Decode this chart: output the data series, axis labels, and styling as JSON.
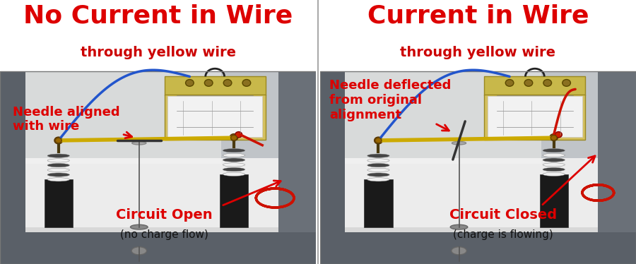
{
  "left_title": "No Current in Wire",
  "right_title": "Current in Wire",
  "subtitle": "through yellow wire",
  "left_label1": "Needle aligned\nwith wire",
  "left_label2_line1": "Circuit Open",
  "left_label2_line2": "(no charge flow)",
  "right_label1": "Needle deflected\nfrom original\nalignment",
  "right_label2_line1": "Circuit Closed",
  "right_label2_line2": "(charge is flowing)",
  "title_color": "#dd0000",
  "subtitle_color": "#cc0000",
  "label_color": "#dd0000",
  "bg_color": "#ffffff",
  "title_fontsize": 26,
  "subtitle_fontsize": 14,
  "label_fontsize": 13,
  "paren_fontsize": 11,
  "fig_width": 9.0,
  "fig_height": 3.74
}
